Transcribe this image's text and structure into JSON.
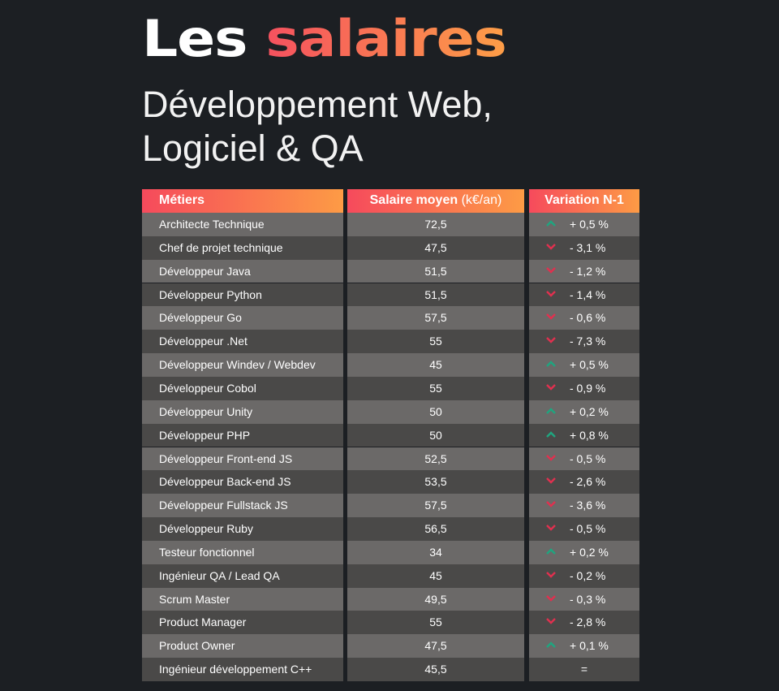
{
  "title": {
    "part1": "Les",
    "part2": "salaires"
  },
  "subtitle": {
    "line1": "Développement Web,",
    "line2": "Logiciel & QA"
  },
  "colors": {
    "background": "#1c1f23",
    "gradient_start": "#f64a5c",
    "gradient_end": "#fd9b45",
    "up": "#1fa57f",
    "down": "#e0304f",
    "row_light": "#6b6968",
    "row_dark": "#4a4948"
  },
  "table": {
    "headers": {
      "job": "Métiers",
      "salary": "Salaire moyen",
      "salary_unit": "(k€/an)",
      "variation": "Variation N-1"
    },
    "rows": [
      {
        "job": "Architecte Technique",
        "salary": "72,5",
        "variation": "+ 0,5 %",
        "trend": "up"
      },
      {
        "job": "Chef de projet technique",
        "salary": "47,5",
        "variation": "- 3,1 %",
        "trend": "down"
      },
      {
        "job": "Développeur Java",
        "salary": "51,5",
        "variation": "- 1,2 %",
        "trend": "down"
      },
      {
        "job": "Développeur Python",
        "salary": "51,5",
        "variation": "- 1,4 %",
        "trend": "down"
      },
      {
        "job": "Développeur Go",
        "salary": "57,5",
        "variation": "- 0,6 %",
        "trend": "down"
      },
      {
        "job": "Développeur .Net",
        "salary": "55",
        "variation": "- 7,3 %",
        "trend": "down"
      },
      {
        "job": "Développeur Windev / Webdev",
        "salary": "45",
        "variation": "+ 0,5 %",
        "trend": "up"
      },
      {
        "job": "Développeur Cobol",
        "salary": "55",
        "variation": "- 0,9 %",
        "trend": "down"
      },
      {
        "job": "Développeur Unity",
        "salary": "50",
        "variation": "+ 0,2 %",
        "trend": "up"
      },
      {
        "job": "Développeur PHP",
        "salary": "50",
        "variation": "+ 0,8 %",
        "trend": "up"
      },
      {
        "job": "Développeur Front-end JS",
        "salary": "52,5",
        "variation": "- 0,5 %",
        "trend": "down"
      },
      {
        "job": "Développeur Back-end JS",
        "salary": "53,5",
        "variation": "- 2,6 %",
        "trend": "down"
      },
      {
        "job": "Développeur Fullstack JS",
        "salary": "57,5",
        "variation": "- 3,6 %",
        "trend": "down"
      },
      {
        "job": "Développeur Ruby",
        "salary": "56,5",
        "variation": "- 0,5 %",
        "trend": "down"
      },
      {
        "job": "Testeur fonctionnel",
        "salary": "34",
        "variation": "+ 0,2 %",
        "trend": "up"
      },
      {
        "job": "Ingénieur QA / Lead QA",
        "salary": "45",
        "variation": "- 0,2 %",
        "trend": "down"
      },
      {
        "job": "Scrum Master",
        "salary": "49,5",
        "variation": "- 0,3 %",
        "trend": "down"
      },
      {
        "job": "Product Manager",
        "salary": "55",
        "variation": "- 2,8 %",
        "trend": "down"
      },
      {
        "job": "Product Owner",
        "salary": "47,5",
        "variation": "+ 0,1 %",
        "trend": "up"
      },
      {
        "job": "Ingénieur développement C++",
        "salary": "45,5",
        "variation": "=",
        "trend": "flat"
      }
    ]
  }
}
